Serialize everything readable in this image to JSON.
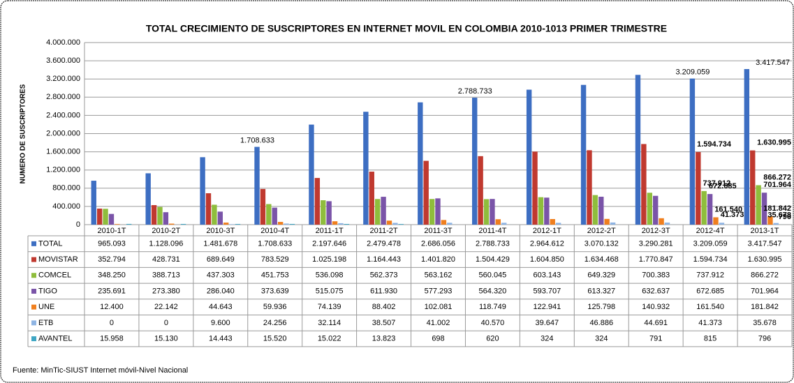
{
  "chart_data": {
    "type": "bar",
    "title": "TOTAL CRECIMIENTO DE SUSCRIPTORES EN INTERNET MOVIL EN COLOMBIA 2010-1013 PRIMER TRIMESTRE",
    "y_label": "NUMERO DE SUSCRIPTORES",
    "source": "Fuente: MinTic-SIUST Internet móvil-Nivel Nacional",
    "categories": [
      "2010-1T",
      "2010-2T",
      "2010-3T",
      "2010-4T",
      "2011-1T",
      "2011-2T",
      "2011-3T",
      "2011-4T",
      "2012-1T",
      "2012-2T",
      "2012-3T",
      "2012-4T",
      "2013-1T"
    ],
    "ylim": [
      0,
      4000000
    ],
    "yticks": [
      0,
      {
        "value": 400000,
        "label": "400.000"
      },
      {
        "value": 800000,
        "label": "800.000"
      },
      {
        "value": 1200000,
        "label": "1.200.000"
      },
      {
        "value": 1600000,
        "label": "1.600.000"
      },
      {
        "value": 2000000,
        "label": "2.000.000"
      },
      {
        "value": 2400000,
        "label": "2.400.000"
      },
      {
        "value": 2800000,
        "label": "2.800.000"
      },
      {
        "value": 3200000,
        "label": "3.200.000"
      },
      {
        "value": 3600000,
        "label": "3.600.000"
      },
      {
        "value": 4000000,
        "label": "4.000.000"
      }
    ],
    "grid": true,
    "series": [
      {
        "name": "TOTAL",
        "color": "#3d6ec2",
        "values": [
          965093,
          1128096,
          1481678,
          1708633,
          2197646,
          2479478,
          2686056,
          2788733,
          2964612,
          3070132,
          3290281,
          3209059,
          3417547
        ],
        "value_labels": [
          "965.093",
          "1.128.096",
          "1.481.678",
          "1.708.633",
          "2.197.646",
          "2.479.478",
          "2.686.056",
          "2.788.733",
          "2.964.612",
          "3.070.132",
          "3.290.281",
          "3.209.059",
          "3.417.547"
        ],
        "labeled": [
          3,
          7,
          11,
          12
        ]
      },
      {
        "name": "MOVISTAR",
        "color": "#c0392f",
        "values": [
          352794,
          428731,
          689649,
          783529,
          1025198,
          1164443,
          1401820,
          1504429,
          1604850,
          1634468,
          1770847,
          1594734,
          1630995
        ],
        "value_labels": [
          "352.794",
          "428.731",
          "689.649",
          "783.529",
          "1.025.198",
          "1.164.443",
          "1.401.820",
          "1.504.429",
          "1.604.850",
          "1.634.468",
          "1.770.847",
          "1.594.734",
          "1.630.995"
        ],
        "labeled": [
          11,
          12
        ]
      },
      {
        "name": "COMCEL",
        "color": "#8fbd3c",
        "values": [
          348250,
          388713,
          437303,
          451753,
          536098,
          562373,
          563162,
          560045,
          603143,
          649329,
          700383,
          737912,
          866272
        ],
        "value_labels": [
          "348.250",
          "388.713",
          "437.303",
          "451.753",
          "536.098",
          "562.373",
          "563.162",
          "560.045",
          "603.143",
          "649.329",
          "700.383",
          "737.912",
          "866.272"
        ],
        "labeled": [
          11,
          12
        ]
      },
      {
        "name": "TIGO",
        "color": "#7a54a8",
        "values": [
          235691,
          273380,
          286040,
          373639,
          515075,
          611930,
          577293,
          564320,
          593707,
          613327,
          632637,
          672685,
          701964
        ],
        "value_labels": [
          "235.691",
          "273.380",
          "286.040",
          "373.639",
          "515.075",
          "611.930",
          "577.293",
          "564.320",
          "593.707",
          "613.327",
          "632.637",
          "672.685",
          "701.964"
        ],
        "labeled": [
          11,
          12
        ]
      },
      {
        "name": "UNE",
        "color": "#f07f1e",
        "values": [
          12400,
          22142,
          44643,
          59936,
          74139,
          88402,
          102081,
          118749,
          122941,
          125798,
          140932,
          161540,
          181842
        ],
        "value_labels": [
          "12.400",
          "22.142",
          "44.643",
          "59.936",
          "74.139",
          "88.402",
          "102.081",
          "118.749",
          "122.941",
          "125.798",
          "140.932",
          "161.540",
          "181.842"
        ],
        "labeled": [
          11,
          12
        ]
      },
      {
        "name": "ETB",
        "color": "#8eb4e3",
        "values": [
          0,
          0,
          9600,
          24256,
          32114,
          38507,
          41002,
          40570,
          39647,
          46886,
          44691,
          41373,
          35678
        ],
        "value_labels": [
          "0",
          "0",
          "9.600",
          "24.256",
          "32.114",
          "38.507",
          "41.002",
          "40.570",
          "39.647",
          "46.886",
          "44.691",
          "41.373",
          "35.678"
        ],
        "labeled": [
          11,
          12
        ]
      },
      {
        "name": "AVANTEL",
        "color": "#3fa6c4",
        "values": [
          15958,
          15130,
          14443,
          15520,
          15022,
          13823,
          698,
          620,
          324,
          324,
          791,
          815,
          796
        ],
        "value_labels": [
          "15.958",
          "15.130",
          "14.443",
          "15.520",
          "15.022",
          "13.823",
          "698",
          "620",
          "324",
          "324",
          "791",
          "815",
          "796"
        ],
        "labeled": [
          12
        ]
      }
    ]
  }
}
